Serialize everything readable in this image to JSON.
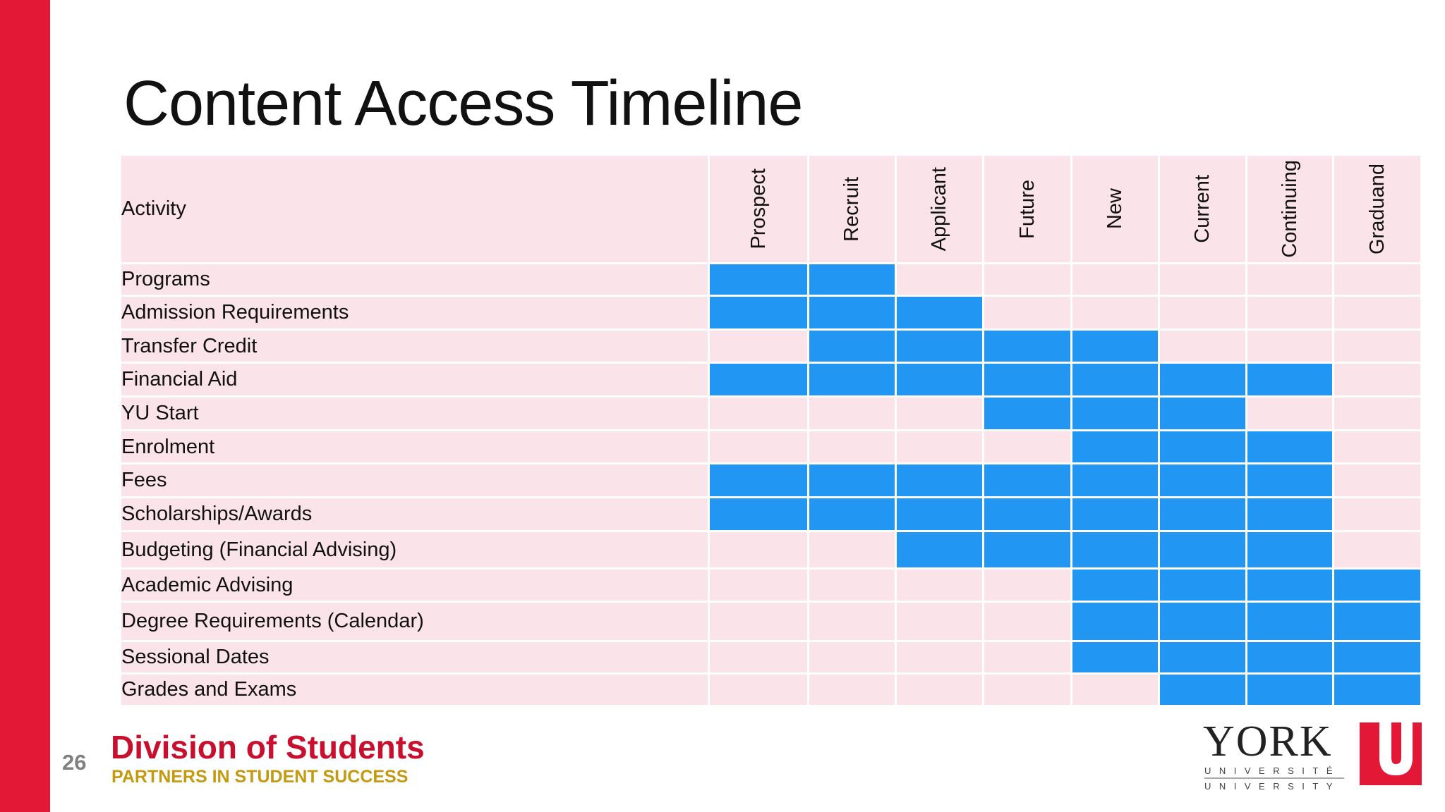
{
  "title": "Content Access Timeline",
  "table": {
    "header": "Activity",
    "columns": [
      "Prospect",
      "Recruit",
      "Applicant",
      "Future",
      "New",
      "Current",
      "Continuing",
      "Graduand"
    ],
    "rows": [
      {
        "label": "Programs",
        "access": [
          1,
          1,
          0,
          0,
          0,
          0,
          0,
          0
        ]
      },
      {
        "label": "Admission Requirements",
        "access": [
          1,
          1,
          1,
          0,
          0,
          0,
          0,
          0
        ]
      },
      {
        "label": "Transfer Credit",
        "access": [
          0,
          1,
          1,
          1,
          1,
          0,
          0,
          0
        ]
      },
      {
        "label": "Financial Aid",
        "access": [
          1,
          1,
          1,
          1,
          1,
          1,
          1,
          0
        ]
      },
      {
        "label": "YU Start",
        "access": [
          0,
          0,
          0,
          1,
          1,
          1,
          0,
          0
        ]
      },
      {
        "label": "Enrolment",
        "access": [
          0,
          0,
          0,
          0,
          1,
          1,
          1,
          0
        ]
      },
      {
        "label": "Fees",
        "access": [
          1,
          1,
          1,
          1,
          1,
          1,
          1,
          0
        ]
      },
      {
        "label": "Scholarships/Awards",
        "access": [
          1,
          1,
          1,
          1,
          1,
          1,
          1,
          0
        ]
      },
      {
        "label": "Budgeting (Financial Advising)",
        "access": [
          0,
          0,
          1,
          1,
          1,
          1,
          1,
          0
        ]
      },
      {
        "label": "Academic Advising",
        "access": [
          0,
          0,
          0,
          0,
          1,
          1,
          1,
          1
        ]
      },
      {
        "label": "Degree Requirements (Calendar)",
        "access": [
          0,
          0,
          0,
          0,
          1,
          1,
          1,
          1
        ]
      },
      {
        "label": "Sessional Dates",
        "access": [
          0,
          0,
          0,
          0,
          1,
          1,
          1,
          1
        ]
      },
      {
        "label": "Grades and Exams",
        "access": [
          0,
          0,
          0,
          0,
          0,
          1,
          1,
          1
        ]
      }
    ]
  },
  "footer": {
    "page": "26",
    "division": "Division of Students",
    "tagline": "PARTNERS IN STUDENT SUCCESS"
  },
  "logo": {
    "text": "YORK",
    "line1": "UNIVERSITÉ",
    "line2": "UNIVERSITY",
    "mark": "U"
  },
  "colors": {
    "accent": "#E31837",
    "access": "#2196F3",
    "empty": "#FBE4E9"
  }
}
